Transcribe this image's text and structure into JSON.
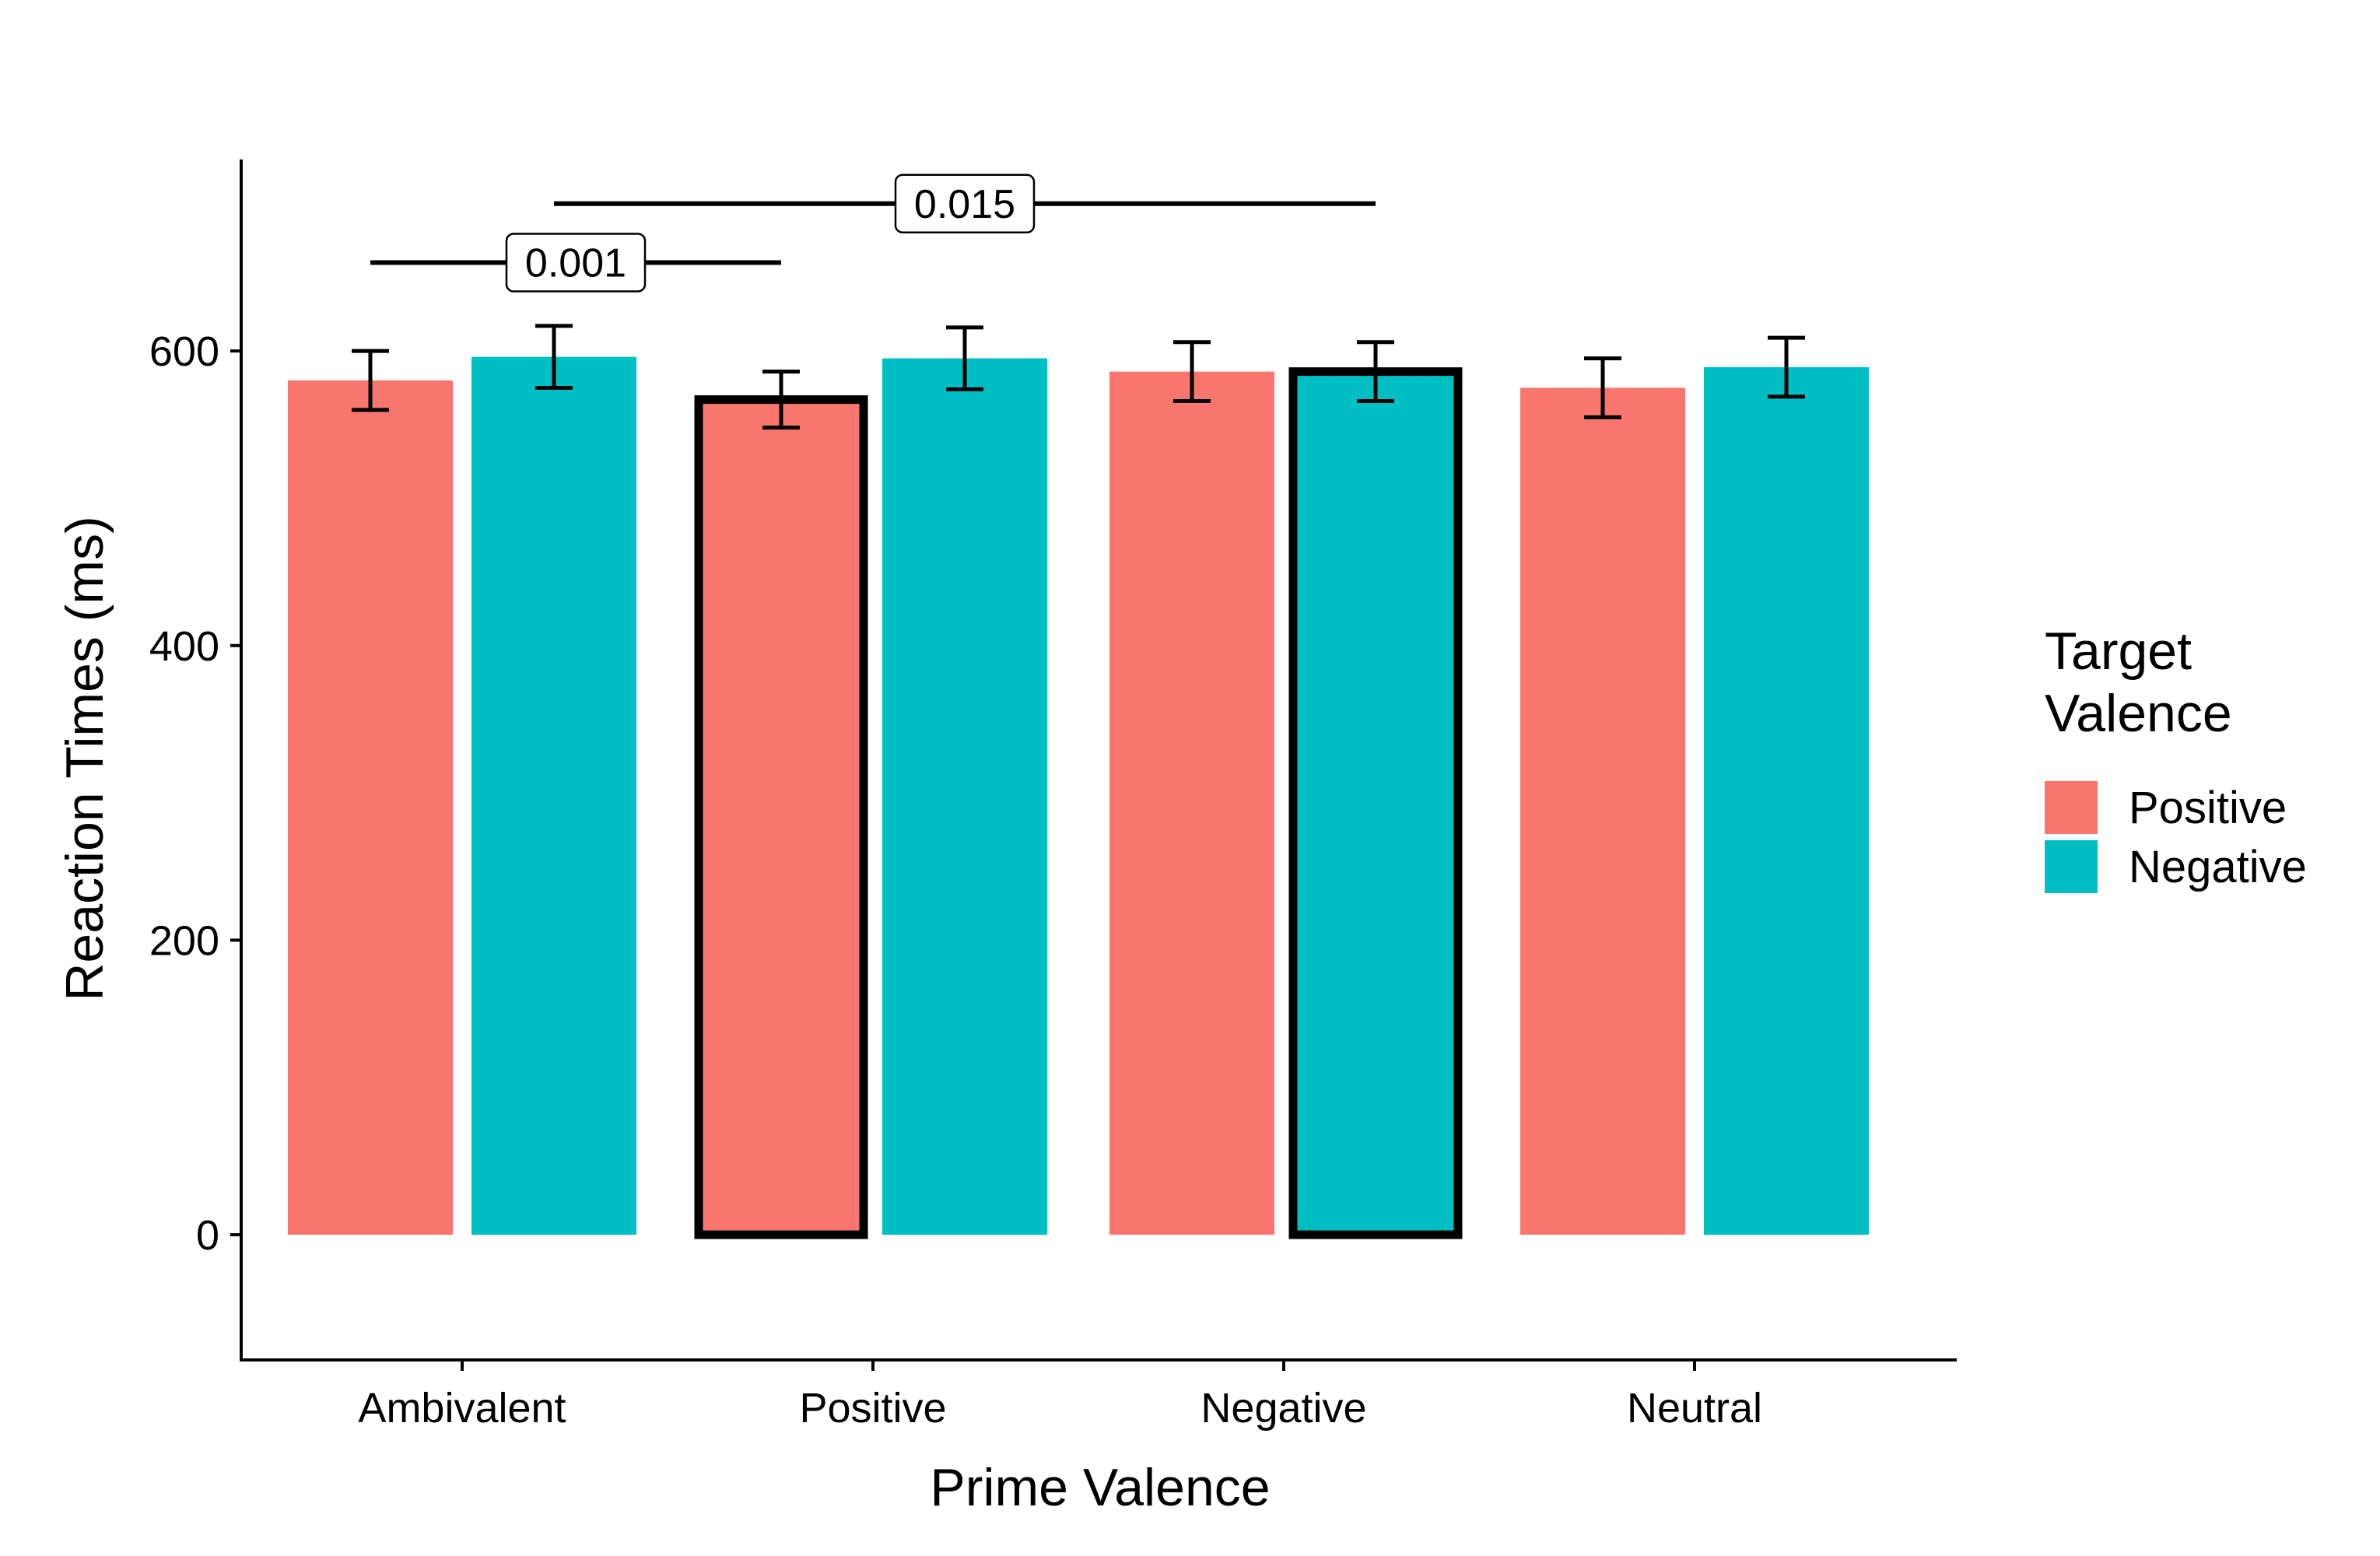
{
  "chart_data": {
    "type": "bar",
    "title": "",
    "xlabel": "Prime Valence",
    "ylabel": "Reaction Times (ms)",
    "categories": [
      "Ambivalent",
      "Positive",
      "Negative",
      "Neutral"
    ],
    "ylim": [
      -85,
      730
    ],
    "yticks": [
      0,
      200,
      400,
      600
    ],
    "series": [
      {
        "name": "Positive",
        "color": "#F8766D",
        "values": [
          580,
          567,
          586,
          575
        ],
        "error": [
          20,
          19,
          20,
          20
        ]
      },
      {
        "name": "Negative",
        "color": "#00BFC4",
        "values": [
          596,
          595,
          586,
          589
        ],
        "error": [
          21,
          21,
          20,
          20
        ]
      }
    ],
    "highlighted_bars": [
      {
        "category": "Positive",
        "series": "Positive"
      },
      {
        "category": "Negative",
        "series": "Negative"
      }
    ],
    "annotations": [
      {
        "label": "0.001",
        "y": 660,
        "from": {
          "category": "Ambivalent",
          "series": "Positive"
        },
        "to": {
          "category": "Positive",
          "series": "Positive"
        }
      },
      {
        "label": "0.015",
        "y": 700,
        "from": {
          "category": "Ambivalent",
          "series": "Negative"
        },
        "to": {
          "category": "Negative",
          "series": "Negative"
        }
      }
    ],
    "legend": {
      "title_lines": [
        "Target",
        "Valence"
      ],
      "position": "right"
    },
    "grid": false
  }
}
